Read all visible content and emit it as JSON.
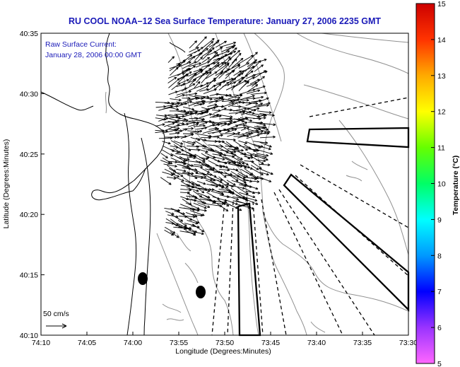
{
  "title": "RU COOL  NOAA–12  Sea Surface Temperature:  January 27, 2006 2235 GMT",
  "annotation": {
    "line1": "Raw Surface Current:",
    "line2": "January 28, 2006 00:00 GMT"
  },
  "axes": {
    "xlabel": "Longitude (Degrees:Minutes)",
    "ylabel": "Latitude (Degrees:Minutes)",
    "xticks": [
      {
        "label": "74:10",
        "minutes": -10
      },
      {
        "label": "74:05",
        "minutes": -5
      },
      {
        "label": "74:00",
        "minutes": 0
      },
      {
        "label": "73:55",
        "minutes": 5
      },
      {
        "label": "73:50",
        "minutes": 10
      },
      {
        "label": "73:45",
        "minutes": 15
      },
      {
        "label": "73:40",
        "minutes": 20
      },
      {
        "label": "73:35",
        "minutes": 25
      },
      {
        "label": "73:30",
        "minutes": 30
      }
    ],
    "yticks": [
      {
        "label": "40:10",
        "minutes": 10
      },
      {
        "label": "40:15",
        "minutes": 15
      },
      {
        "label": "40:20",
        "minutes": 20
      },
      {
        "label": "40:25",
        "minutes": 25
      },
      {
        "label": "40:30",
        "minutes": 30
      },
      {
        "label": "40:35",
        "minutes": 35
      }
    ]
  },
  "colorbar": {
    "label": "Temperature (°C)",
    "ticks": [
      "5",
      "6",
      "7",
      "8",
      "9",
      "10",
      "11",
      "12",
      "13",
      "14",
      "15"
    ],
    "min": 5,
    "max": 15,
    "colors": [
      "#ff66ff",
      "#9933ff",
      "#0000ff",
      "#0099ff",
      "#00ffff",
      "#00ff66",
      "#66ff00",
      "#ffff00",
      "#ffaa00",
      "#ff3300",
      "#cc0000"
    ]
  },
  "scale_arrow": {
    "label": "50 cm/s"
  },
  "colors": {
    "title": "#1a1ab8",
    "coast": "#000000",
    "bathymetry": "#909090",
    "vectors": "#000000",
    "beams": "#000000"
  }
}
